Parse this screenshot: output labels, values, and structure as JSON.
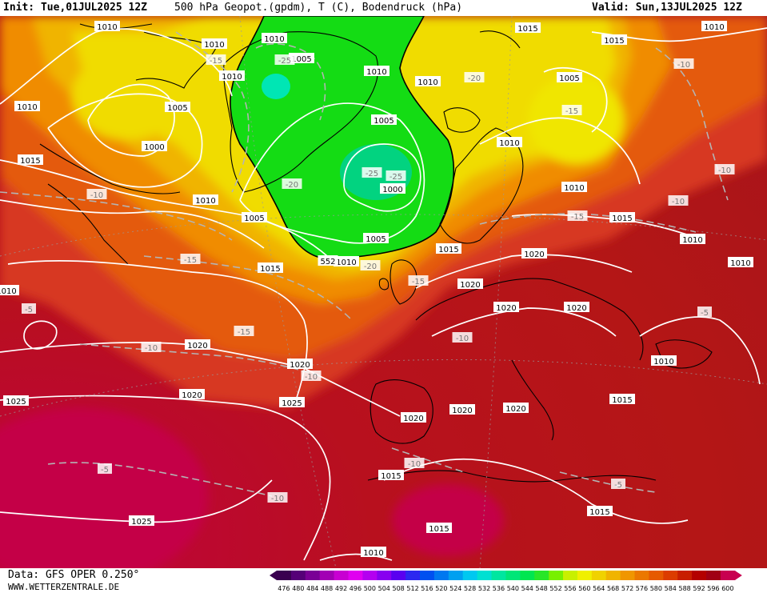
{
  "header": {
    "init": "Init: Tue,01JUL2025 12Z",
    "title": "500 hPa Geopot.(gpdm), T (C), Bodendruck (hPa)",
    "valid": "Valid: Sun,13JUL2025 12Z"
  },
  "footer": {
    "data_source": "Data: GFS OPER 0.250°",
    "website": "WWW.WETTERZENTRALE.DE"
  },
  "legend": {
    "values": [
      "476",
      "480",
      "484",
      "488",
      "492",
      "496",
      "500",
      "504",
      "508",
      "512",
      "516",
      "520",
      "524",
      "528",
      "532",
      "536",
      "540",
      "544",
      "548",
      "552",
      "556",
      "560",
      "564",
      "568",
      "572",
      "576",
      "580",
      "584",
      "588",
      "592",
      "596",
      "600"
    ],
    "colors": [
      "#3a0050",
      "#560078",
      "#7a0096",
      "#a200b4",
      "#c800d2",
      "#e000f0",
      "#b400f0",
      "#8800f0",
      "#5a00f0",
      "#2c28f0",
      "#0050f0",
      "#0078f0",
      "#00a0f0",
      "#00c8f0",
      "#00e0d2",
      "#00e6a0",
      "#00e678",
      "#00e650",
      "#28e628",
      "#78f000",
      "#c8f000",
      "#f0f000",
      "#f0d200",
      "#f0b400",
      "#f09600",
      "#eb7800",
      "#e65a00",
      "#dc3c00",
      "#c81e00",
      "#b40000",
      "#a00014",
      "#c80050"
    ]
  },
  "isobar_labels": [
    {
      "text": "1010"
    },
    {
      "text": "1010"
    },
    {
      "text": "1010"
    },
    {
      "text": "1010"
    },
    {
      "text": "1005"
    },
    {
      "text": "1010"
    },
    {
      "text": "1015"
    },
    {
      "text": "1015"
    },
    {
      "text": "1010"
    },
    {
      "text": "1010"
    },
    {
      "text": "1005"
    },
    {
      "text": "1010"
    },
    {
      "text": "1000"
    },
    {
      "text": "1005"
    },
    {
      "text": "1015"
    },
    {
      "text": "1005"
    },
    {
      "text": "1010"
    },
    {
      "text": "1000"
    },
    {
      "text": "1010"
    },
    {
      "text": "1010"
    },
    {
      "text": "1005"
    },
    {
      "text": "1015"
    },
    {
      "text": "1005"
    },
    {
      "text": "1015"
    },
    {
      "text": "1010"
    },
    {
      "text": "1020"
    },
    {
      "text": "552"
    },
    {
      "text": "1010"
    },
    {
      "text": "1015"
    },
    {
      "text": "1020"
    },
    {
      "text": "1010"
    },
    {
      "text": "1020"
    },
    {
      "text": "1020"
    },
    {
      "text": "1020"
    },
    {
      "text": "1010"
    },
    {
      "text": "1020"
    },
    {
      "text": "1015"
    },
    {
      "text": "1020"
    },
    {
      "text": "1025"
    },
    {
      "text": "1025"
    },
    {
      "text": "1020"
    },
    {
      "text": "1020"
    },
    {
      "text": "1020"
    },
    {
      "text": "1015"
    },
    {
      "text": "1015"
    },
    {
      "text": "1025"
    },
    {
      "text": "1015"
    },
    {
      "text": "1010"
    },
    {
      "text": "1010"
    }
  ],
  "temperature_labels": [
    {
      "text": "-15"
    },
    {
      "text": "-25"
    },
    {
      "text": "-20"
    },
    {
      "text": "-10"
    },
    {
      "text": "-15"
    },
    {
      "text": "-20"
    },
    {
      "text": "-25"
    },
    {
      "text": "-25"
    },
    {
      "text": "-10"
    },
    {
      "text": "-10"
    },
    {
      "text": "-15"
    },
    {
      "text": "-10"
    },
    {
      "text": "-15"
    },
    {
      "text": "-20"
    },
    {
      "text": "-15"
    },
    {
      "text": "-5"
    },
    {
      "text": "-15"
    },
    {
      "text": "-10"
    },
    {
      "text": "-10"
    },
    {
      "text": "-10"
    },
    {
      "text": "-5"
    },
    {
      "text": "-5"
    },
    {
      "text": "-10"
    },
    {
      "text": "-10"
    },
    {
      "text": "-5"
    }
  ]
}
